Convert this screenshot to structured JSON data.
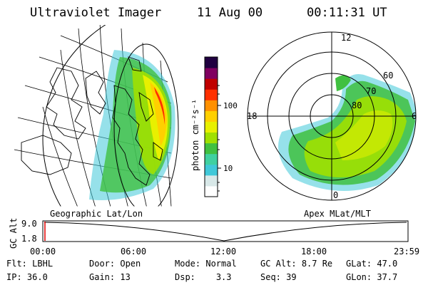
{
  "header": {
    "instrument": "Ultraviolet Imager",
    "date": "11 Aug 00",
    "time": "00:11:31 UT"
  },
  "colorbar": {
    "units": "photon cm⁻²s⁻¹",
    "ticks": [
      "100",
      "10"
    ],
    "scale": "log"
  },
  "left_panel": {
    "label": "Geographic Lat/Lon"
  },
  "right_panel": {
    "label": "Apex MLat/MLT",
    "mlt_labels": [
      "12",
      "18",
      "6",
      "0"
    ],
    "mlat_labels": [
      "60",
      "70",
      "80"
    ]
  },
  "altitude_plot": {
    "ylabel": "GC Alt",
    "yticks": [
      "9.0",
      "1.8"
    ],
    "xticks": [
      "00:00",
      "06:00",
      "12:00",
      "18:00",
      "23:59"
    ],
    "marker_time": "00:11:31"
  },
  "footer": {
    "row1": [
      {
        "label": "Flt:",
        "value": "LBHL"
      },
      {
        "label": "Door:",
        "value": "Open"
      },
      {
        "label": "Mode:",
        "value": "Normal"
      },
      {
        "label": "GC Alt:",
        "value": "8.7 Re"
      },
      {
        "label": "GLat:",
        "value": "47.0"
      }
    ],
    "row2": [
      {
        "label": "IP:",
        "value": "36.0"
      },
      {
        "label": "Gain:",
        "value": "13"
      },
      {
        "label": "Dsp:",
        "value": "3.3"
      },
      {
        "label": "Seq:",
        "value": "39"
      },
      {
        "label": "GLon:",
        "value": "37.7"
      }
    ]
  },
  "colors": {
    "scale": [
      "#ffffff",
      "#d8e8e8",
      "#40c8d8",
      "#40d0a0",
      "#40c040",
      "#a0e000",
      "#e8f000",
      "#ffd000",
      "#ff9000",
      "#ff3000",
      "#c00000",
      "#800060",
      "#200040"
    ],
    "axes": "#000000",
    "marker": "#e00000"
  }
}
